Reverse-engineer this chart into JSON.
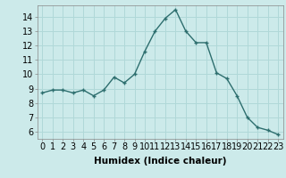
{
  "x": [
    0,
    1,
    2,
    3,
    4,
    5,
    6,
    7,
    8,
    9,
    10,
    11,
    12,
    13,
    14,
    15,
    16,
    17,
    18,
    19,
    20,
    21,
    22,
    23
  ],
  "y": [
    8.7,
    8.9,
    8.9,
    8.7,
    8.9,
    8.5,
    8.9,
    9.8,
    9.4,
    10.0,
    11.6,
    13.0,
    13.9,
    14.5,
    13.0,
    12.2,
    12.2,
    10.1,
    9.7,
    8.5,
    7.0,
    6.3,
    6.1,
    5.8
  ],
  "line_color": "#2d6e6e",
  "marker": "+",
  "marker_size": 3.5,
  "marker_linewidth": 1.0,
  "xlabel": "Humidex (Indice chaleur)",
  "xlabel_fontsize": 7.5,
  "yticks": [
    6,
    7,
    8,
    9,
    10,
    11,
    12,
    13,
    14
  ],
  "xlim": [
    -0.5,
    23.5
  ],
  "ylim": [
    5.5,
    14.8
  ],
  "bg_color": "#cceaea",
  "grid_color": "#b0d8d8",
  "tick_fontsize": 7,
  "line_width": 1.0
}
